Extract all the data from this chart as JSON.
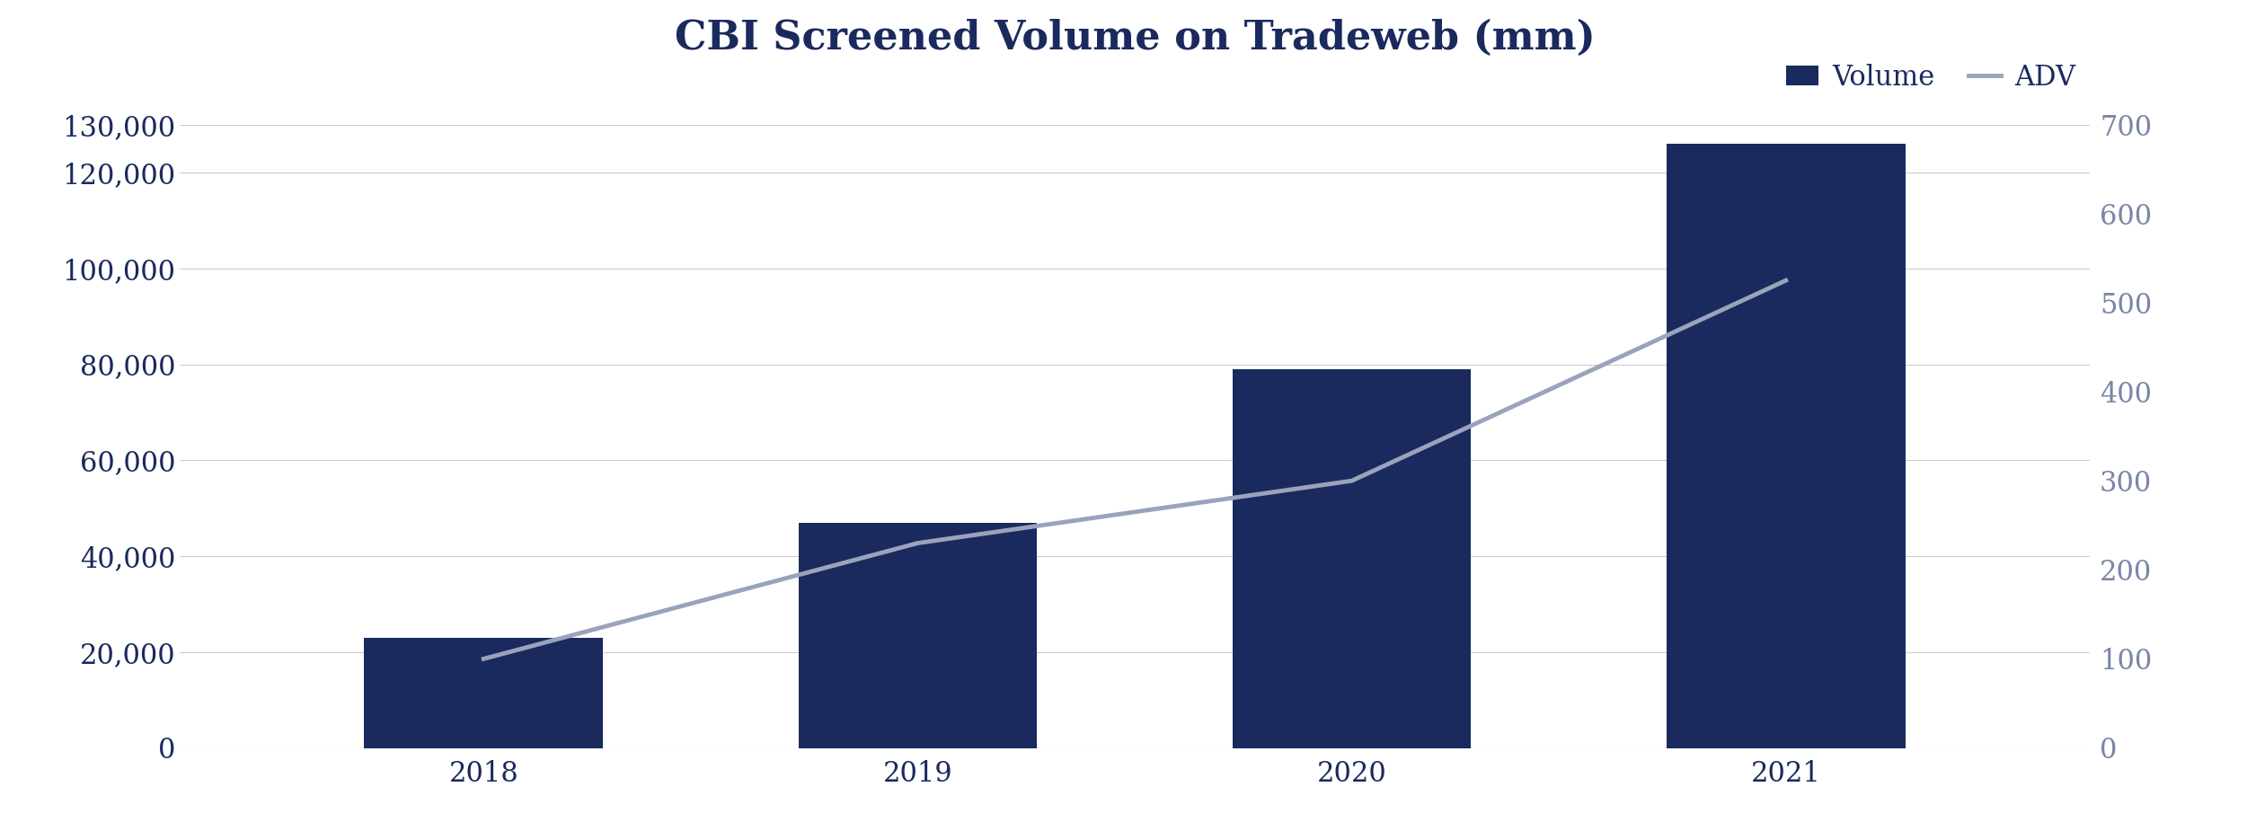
{
  "title": "CBI Screened Volume on Tradeweb (mm)",
  "categories": [
    "2018",
    "2019",
    "2020",
    "2021"
  ],
  "bar_values": [
    23000,
    47000,
    79000,
    126000
  ],
  "adv_values": [
    100,
    230,
    300,
    525
  ],
  "bar_color": "#1a2a5e",
  "adv_color": "#9aa3bc",
  "left_ylim": [
    0,
    130000
  ],
  "right_ylim": [
    0,
    700
  ],
  "left_yticks": [
    0,
    20000,
    40000,
    60000,
    80000,
    100000,
    120000,
    130000
  ],
  "right_yticks": [
    0,
    100,
    200,
    300,
    400,
    500,
    600,
    700
  ],
  "title_color": "#1a2a5e",
  "tick_color": "#1a2a5e",
  "right_tick_color": "#7a85a8",
  "grid_color": "#cccccc",
  "legend_volume_label": "Volume",
  "legend_adv_label": "ADV",
  "bar_width": 0.55,
  "adv_linewidth": 3.5,
  "title_fontsize": 32,
  "tick_fontsize": 22
}
